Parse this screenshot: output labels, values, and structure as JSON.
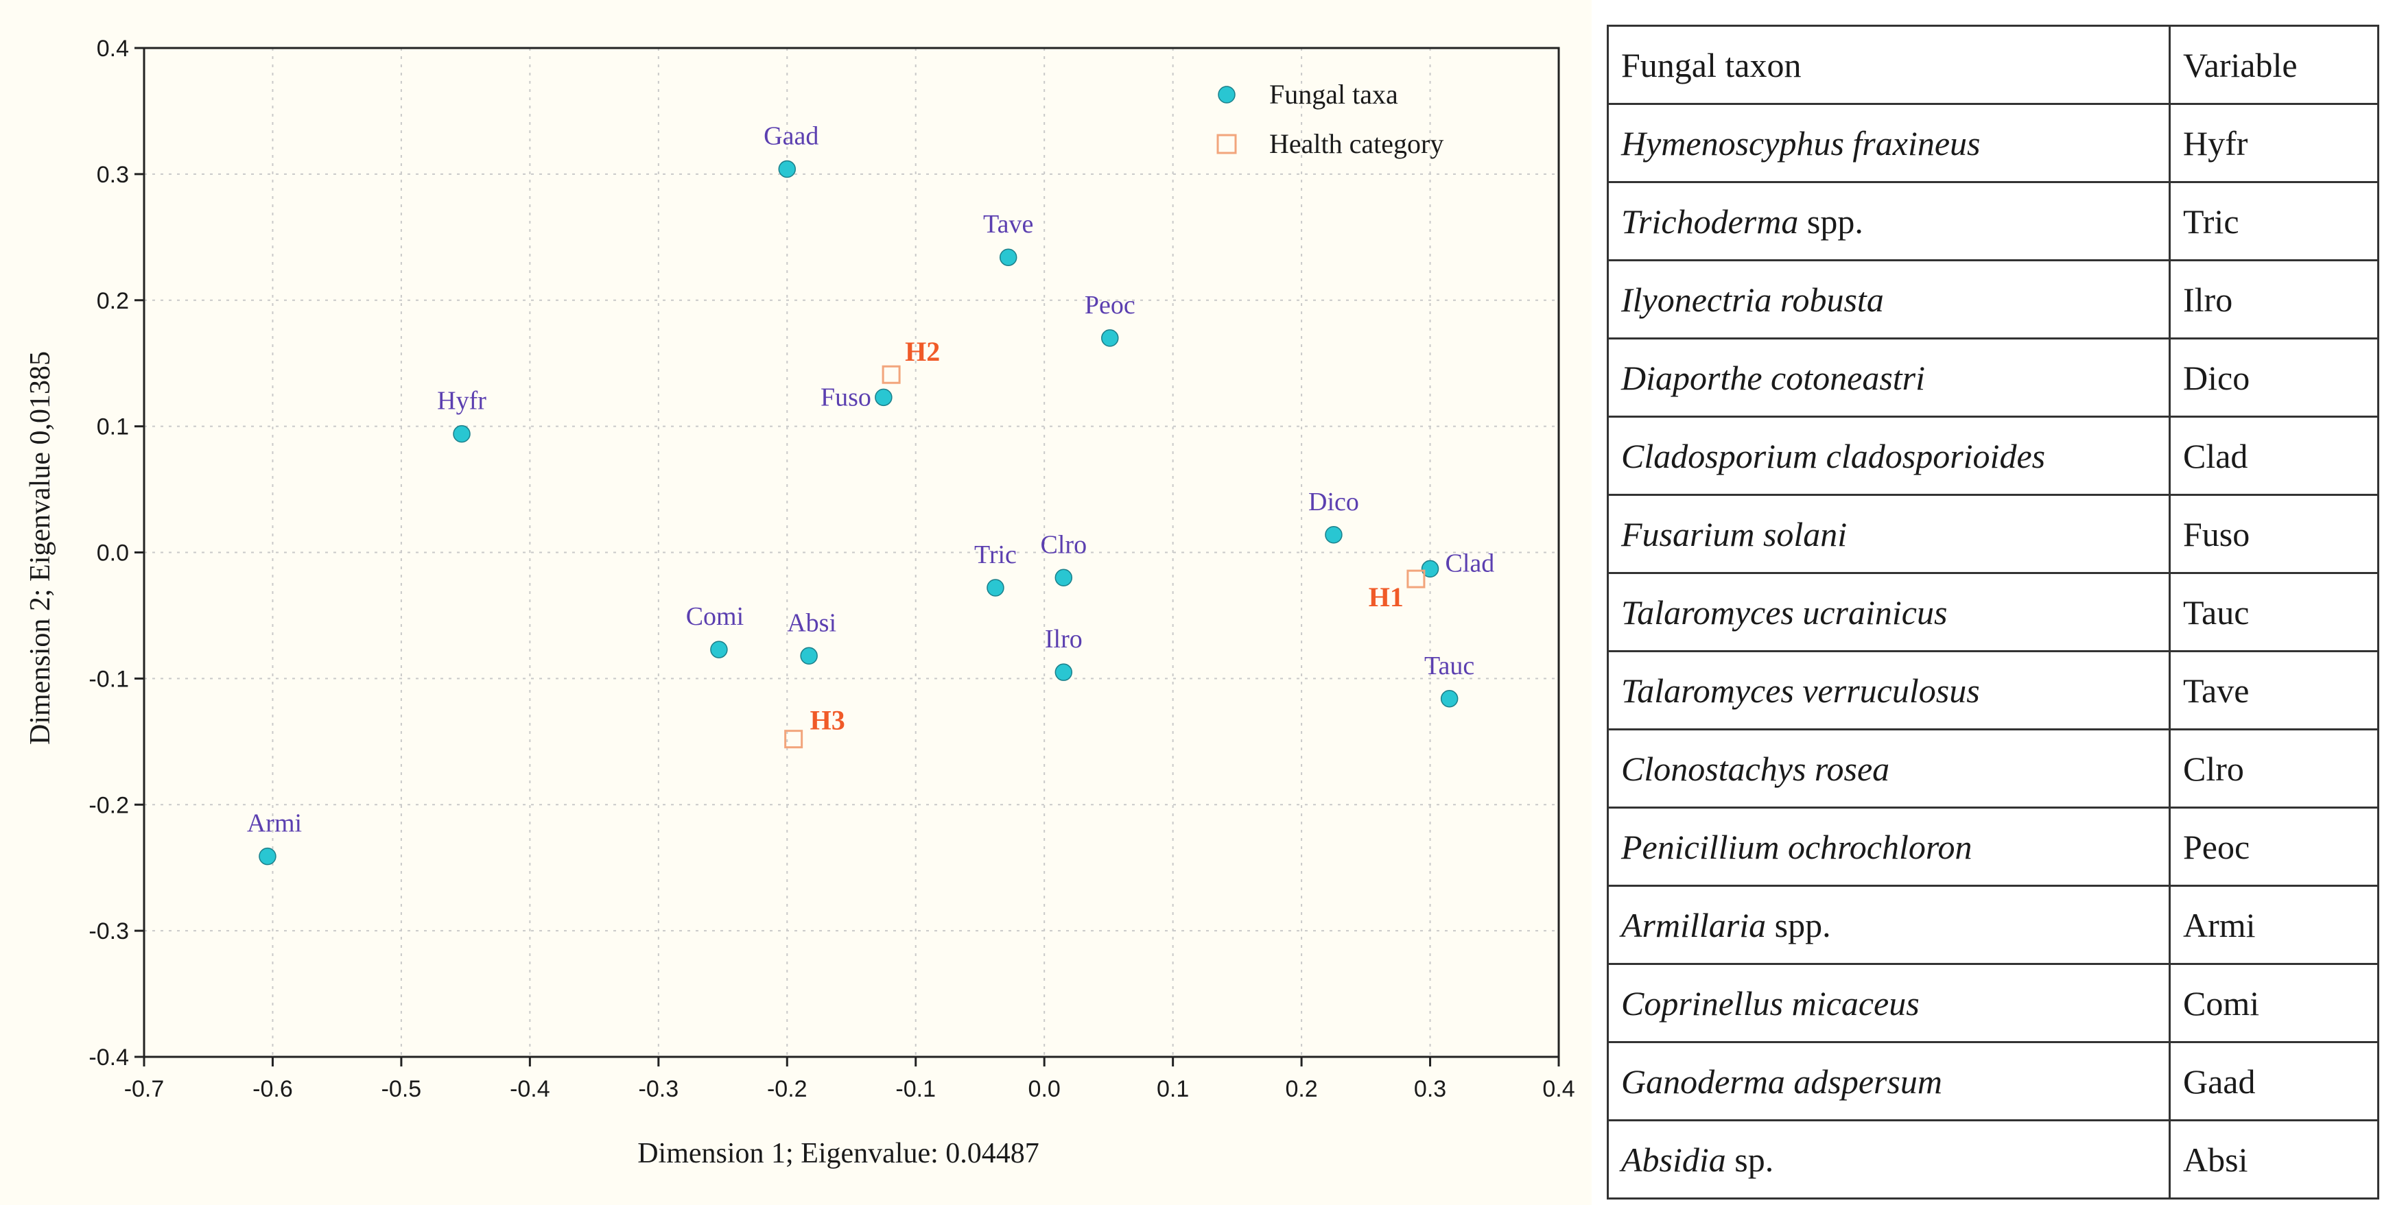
{
  "chart_data": {
    "type": "scatter",
    "xlabel": "Dimension 1; Eigenvalue: 0.04487",
    "ylabel": "Dimension 2; Eigenvalue 0,01385",
    "xlim": [
      -0.7,
      0.4
    ],
    "ylim": [
      -0.4,
      0.4
    ],
    "x_ticks": [
      -0.7,
      -0.6,
      -0.5,
      -0.4,
      -0.3,
      -0.2,
      -0.1,
      0.0,
      0.1,
      0.2,
      0.3,
      0.4
    ],
    "x_tick_labels": [
      "-0.7",
      "-0.6",
      "-0.5",
      "-0.4",
      "-0.3",
      "-0.2",
      "-0.1",
      "0.0",
      "0.1",
      "0.2",
      "0.3",
      "0.4"
    ],
    "y_ticks": [
      -0.4,
      -0.3,
      -0.2,
      -0.1,
      0.0,
      0.1,
      0.2,
      0.3,
      0.4
    ],
    "y_tick_labels": [
      "-0.4",
      "-0.3",
      "-0.2",
      "-0.1",
      "0.0",
      "0.1",
      "0.2",
      "0.3",
      "0.4"
    ],
    "grid": true,
    "legend_position": "top-right",
    "series": [
      {
        "name": "Fungal taxa",
        "marker": "filled-circle",
        "color": "#29c6d2",
        "label_color": "#5b3fb0",
        "points": [
          {
            "label": "Gaad",
            "x": -0.2,
            "y": 0.304
          },
          {
            "label": "Tave",
            "x": -0.028,
            "y": 0.234
          },
          {
            "label": "Peoc",
            "x": 0.051,
            "y": 0.17
          },
          {
            "label": "Fuso",
            "x": -0.125,
            "y": 0.123
          },
          {
            "label": "Hyfr",
            "x": -0.453,
            "y": 0.094
          },
          {
            "label": "Dico",
            "x": 0.225,
            "y": 0.014
          },
          {
            "label": "Clad",
            "x": 0.3,
            "y": -0.013
          },
          {
            "label": "Tric",
            "x": -0.038,
            "y": -0.028
          },
          {
            "label": "Clro",
            "x": 0.015,
            "y": -0.02
          },
          {
            "label": "Comi",
            "x": -0.253,
            "y": -0.077
          },
          {
            "label": "Absi",
            "x": -0.183,
            "y": -0.082
          },
          {
            "label": "Ilro",
            "x": 0.015,
            "y": -0.095
          },
          {
            "label": "Tauc",
            "x": 0.315,
            "y": -0.116
          },
          {
            "label": "Armi",
            "x": -0.604,
            "y": -0.241
          }
        ]
      },
      {
        "name": "Health category",
        "marker": "open-square",
        "color": "#f2a57c",
        "label_color": "#f05a28",
        "points": [
          {
            "label": "H2",
            "x": -0.119,
            "y": 0.141
          },
          {
            "label": "H1",
            "x": 0.289,
            "y": -0.021
          },
          {
            "label": "H3",
            "x": -0.195,
            "y": -0.148
          }
        ]
      }
    ]
  },
  "table": {
    "headers": [
      "Fungal taxon",
      "Variable"
    ],
    "rows": [
      {
        "taxon_italic": "Hymenoscyphus fraxineus",
        "taxon_suffix": "",
        "code": "Hyfr"
      },
      {
        "taxon_italic": "Trichoderma",
        "taxon_suffix": " spp.",
        "code": "Tric"
      },
      {
        "taxon_italic": "Ilyonectria robusta",
        "taxon_suffix": "",
        "code": "Ilro"
      },
      {
        "taxon_italic": "Diaporthe cotoneastri",
        "taxon_suffix": "",
        "code": "Dico"
      },
      {
        "taxon_italic": "Cladosporium cladosporioides",
        "taxon_suffix": "",
        "code": "Clad"
      },
      {
        "taxon_italic": "Fusarium solani",
        "taxon_suffix": "",
        "code": "Fuso"
      },
      {
        "taxon_italic": "Talaromyces ucrainicus",
        "taxon_suffix": "",
        "code": "Tauc"
      },
      {
        "taxon_italic": "Talaromyces verruculosus",
        "taxon_suffix": "",
        "code": "Tave"
      },
      {
        "taxon_italic": "Clonostachys rosea",
        "taxon_suffix": "",
        "code": "Clro"
      },
      {
        "taxon_italic": "Penicillium ochrochloron",
        "taxon_suffix": "",
        "code": "Peoc"
      },
      {
        "taxon_italic": "Armillaria",
        "taxon_suffix": " spp.",
        "code": "Armi"
      },
      {
        "taxon_italic": "Coprinellus micaceus",
        "taxon_suffix": "",
        "code": "Comi"
      },
      {
        "taxon_italic": "Ganoderma adspersum",
        "taxon_suffix": "",
        "code": "Gaad"
      },
      {
        "taxon_italic": "Absidia",
        "taxon_suffix": " sp.",
        "code": "Absi"
      }
    ]
  }
}
